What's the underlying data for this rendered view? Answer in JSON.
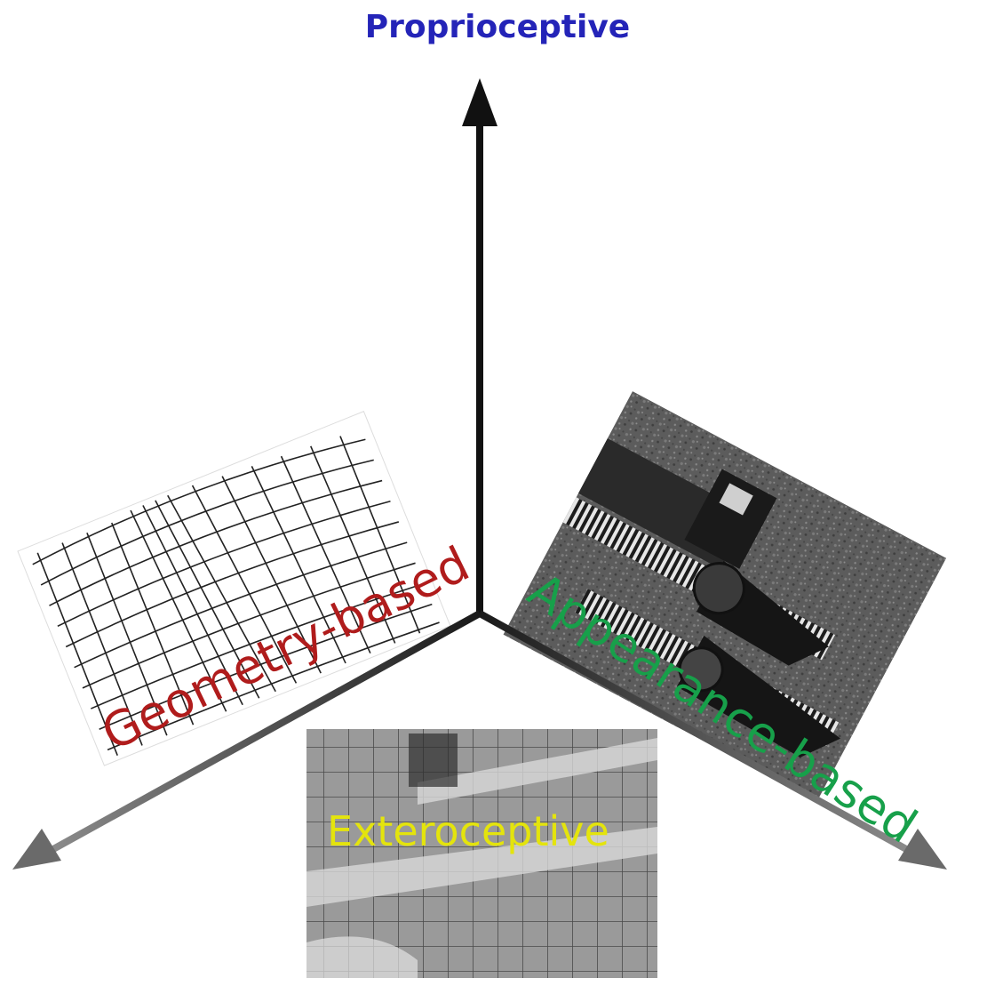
{
  "axes": {
    "vertical_label": "Proprioceptive"
  },
  "panels": {
    "geometry": {
      "label": "Geometry-based",
      "color": "#b01c1c"
    },
    "appearance": {
      "label": "Appearance-based",
      "color": "#17a04a"
    },
    "exteroceptive": {
      "label": "Exteroceptive",
      "color": "#e4e40c"
    }
  },
  "colors": {
    "axis_dark": "#111111",
    "axis_grey": "#5a5a5a",
    "title_blue": "#2424b8"
  }
}
